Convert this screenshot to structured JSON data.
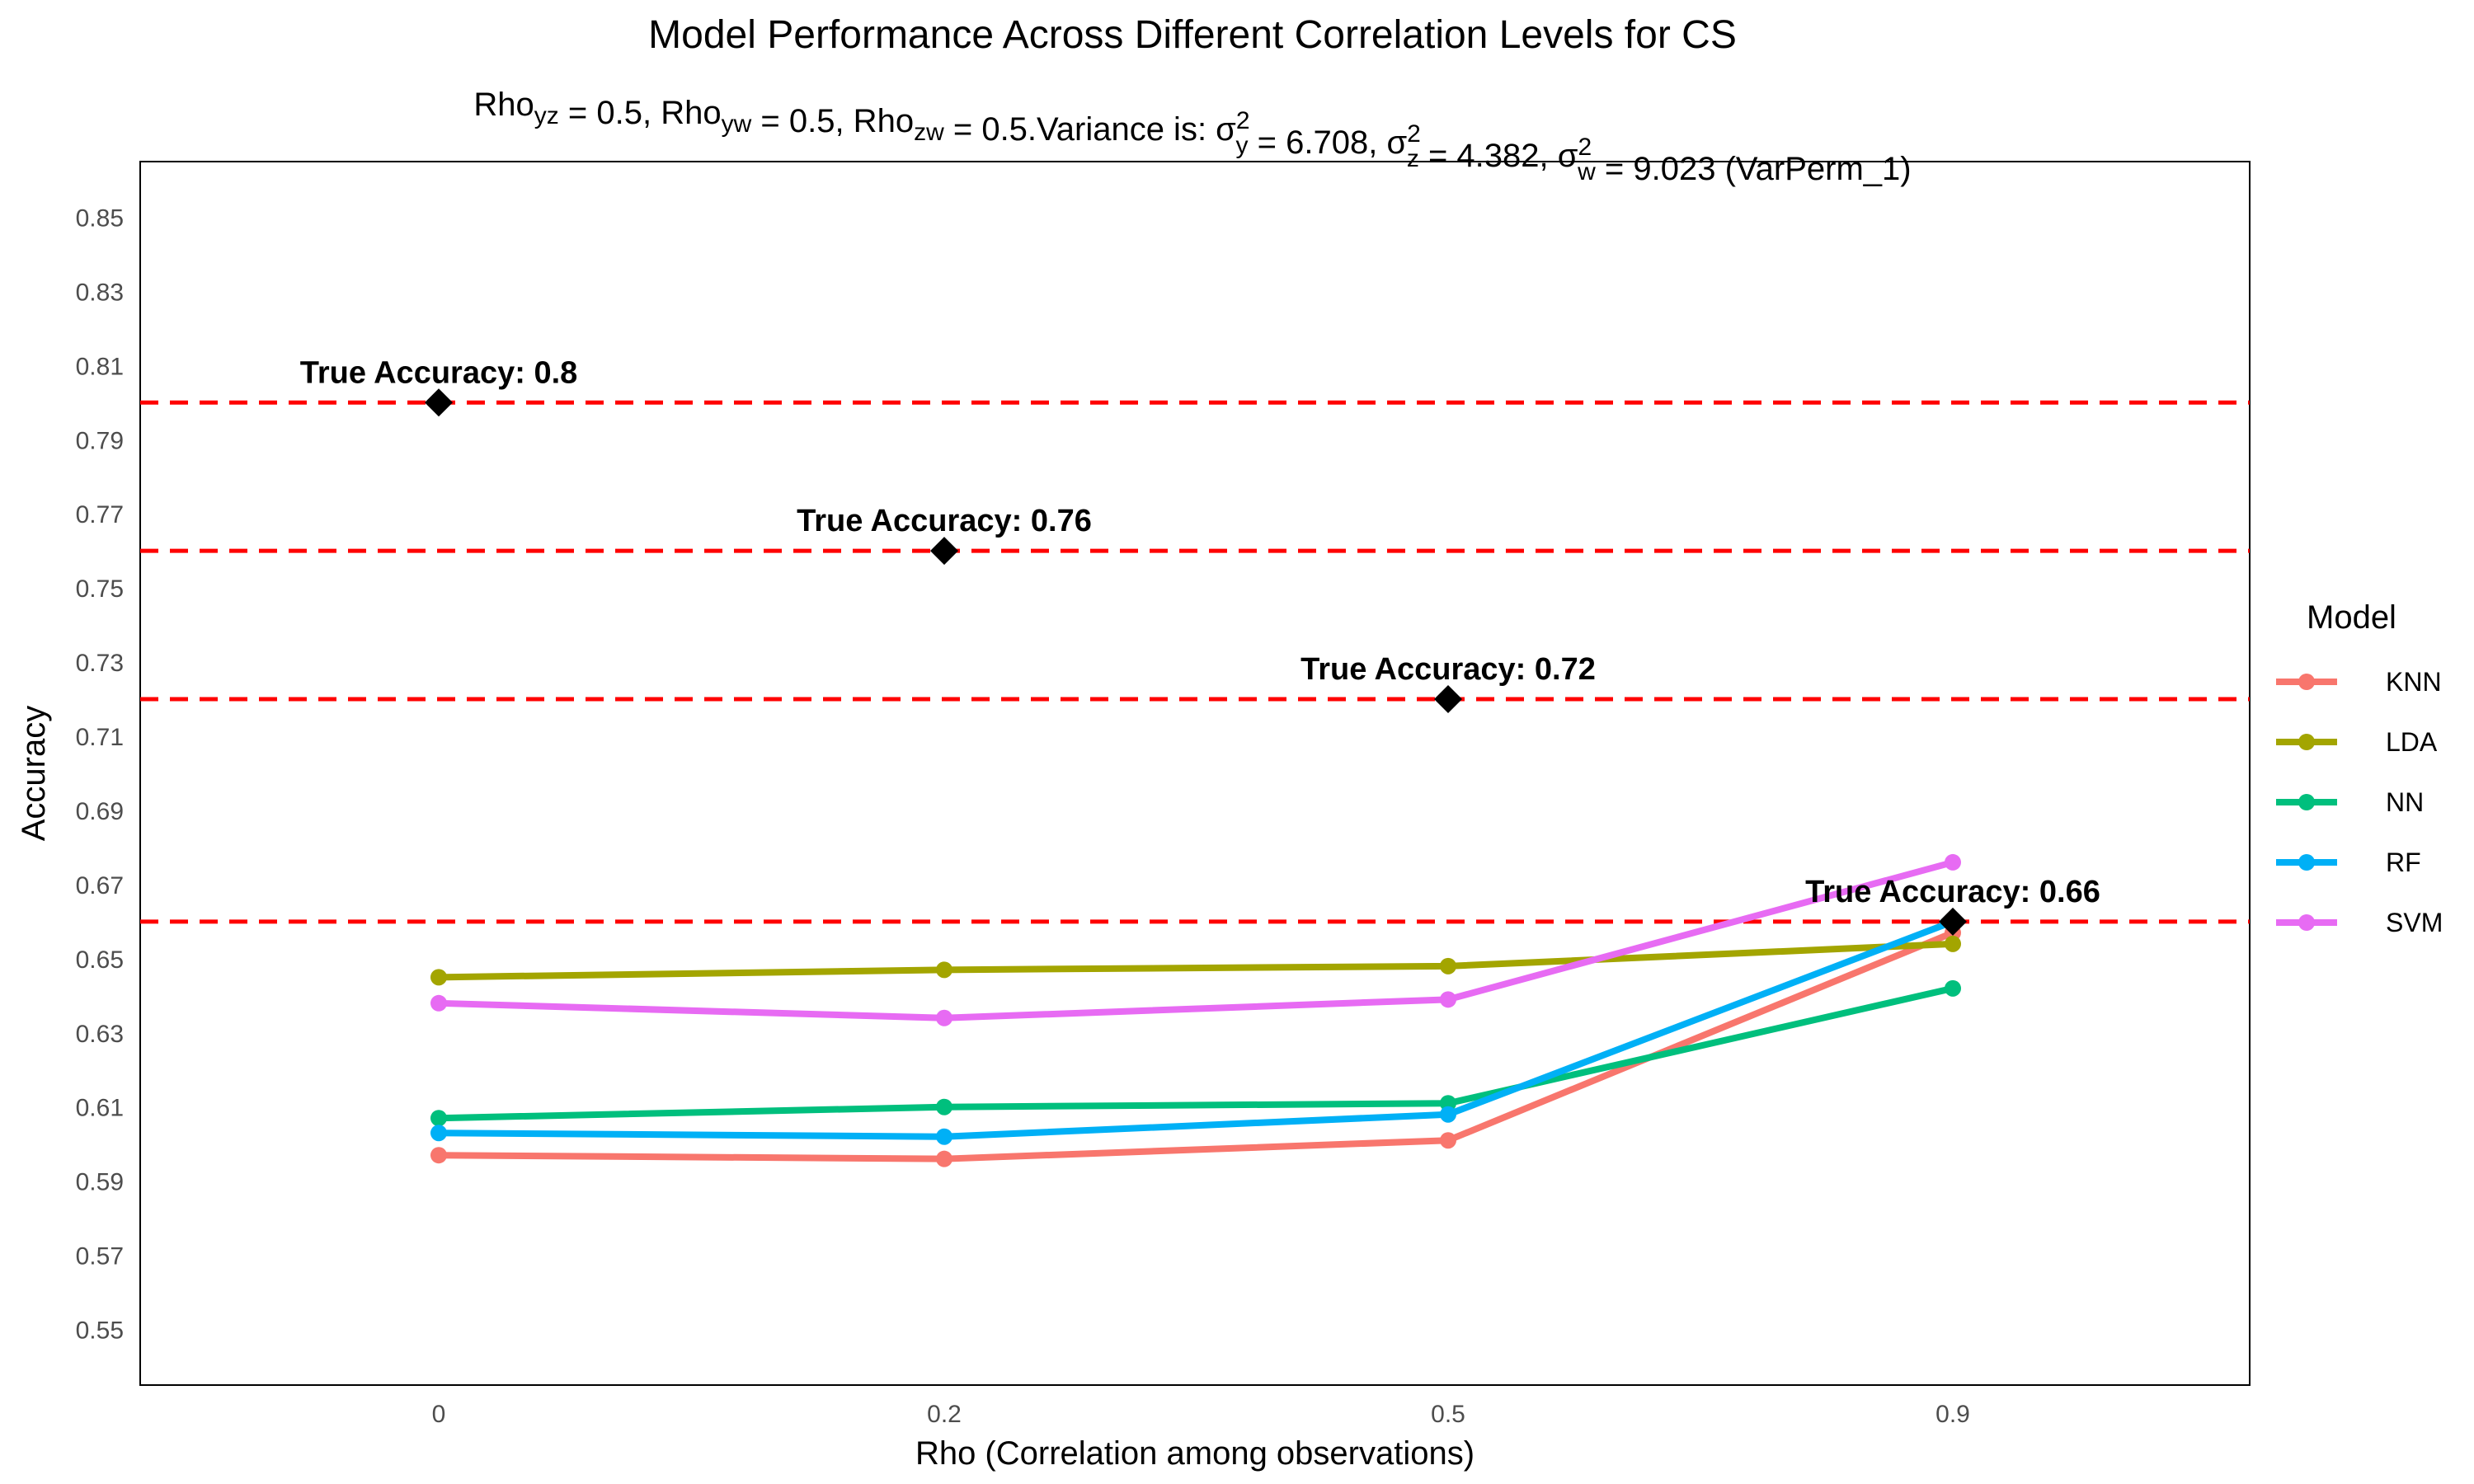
{
  "chart_data": {
    "type": "line",
    "title": "Model Performance Across Different Correlation Levels for CS",
    "subtitle": {
      "parts": [
        {
          "t": "Rho"
        },
        {
          "t": "yz",
          "sub": true
        },
        {
          "t": " = 0.5, Rho"
        },
        {
          "t": "yw",
          "sub": true
        },
        {
          "t": " = 0.5, Rho"
        },
        {
          "t": "zw",
          "sub": true
        },
        {
          "t": " = 0.5.Variance is:  σ"
        },
        {
          "t": "y",
          "sub": true,
          "sup": "2"
        },
        {
          "t": " = 6.708, σ"
        },
        {
          "t": "z",
          "sub": true,
          "sup": "2"
        },
        {
          "t": " = 4.382, σ"
        },
        {
          "t": "w",
          "sub": true,
          "sup": "2"
        },
        {
          "t": " = 9.023 (VarPerm_1)"
        }
      ]
    },
    "xlabel": "Rho (Correlation among observations)",
    "ylabel": "Accuracy",
    "categories": [
      "0",
      "0.2",
      "0.5",
      "0.9"
    ],
    "ylim": [
      0.535,
      0.865
    ],
    "yticks": [
      "0.55",
      "0.57",
      "0.59",
      "0.61",
      "0.63",
      "0.65",
      "0.67",
      "0.69",
      "0.71",
      "0.73",
      "0.75",
      "0.77",
      "0.79",
      "0.81",
      "0.83",
      "0.85"
    ],
    "grid": false,
    "legend_position": "right",
    "legend_title": "Model",
    "series": [
      {
        "name": "KNN",
        "color": "#F8766D",
        "values": [
          0.597,
          0.596,
          0.601,
          0.657
        ]
      },
      {
        "name": "LDA",
        "color": "#A3A500",
        "values": [
          0.645,
          0.647,
          0.648,
          0.654
        ]
      },
      {
        "name": "NN",
        "color": "#00BF7D",
        "values": [
          0.607,
          0.61,
          0.611,
          0.642
        ]
      },
      {
        "name": "RF",
        "color": "#00B0F6",
        "values": [
          0.603,
          0.602,
          0.608,
          0.66
        ]
      },
      {
        "name": "SVM",
        "color": "#E76BF3",
        "values": [
          0.638,
          0.634,
          0.639,
          0.676
        ]
      }
    ],
    "true_accuracy": {
      "line_color": "#FF0000",
      "marker_color": "#000000",
      "points": [
        {
          "category": "0",
          "value": 0.8,
          "label": "True Accuracy: 0.8"
        },
        {
          "category": "0.2",
          "value": 0.76,
          "label": "True Accuracy: 0.76"
        },
        {
          "category": "0.5",
          "value": 0.72,
          "label": "True Accuracy: 0.72"
        },
        {
          "category": "0.9",
          "value": 0.66,
          "label": "True Accuracy: 0.66"
        }
      ]
    }
  }
}
